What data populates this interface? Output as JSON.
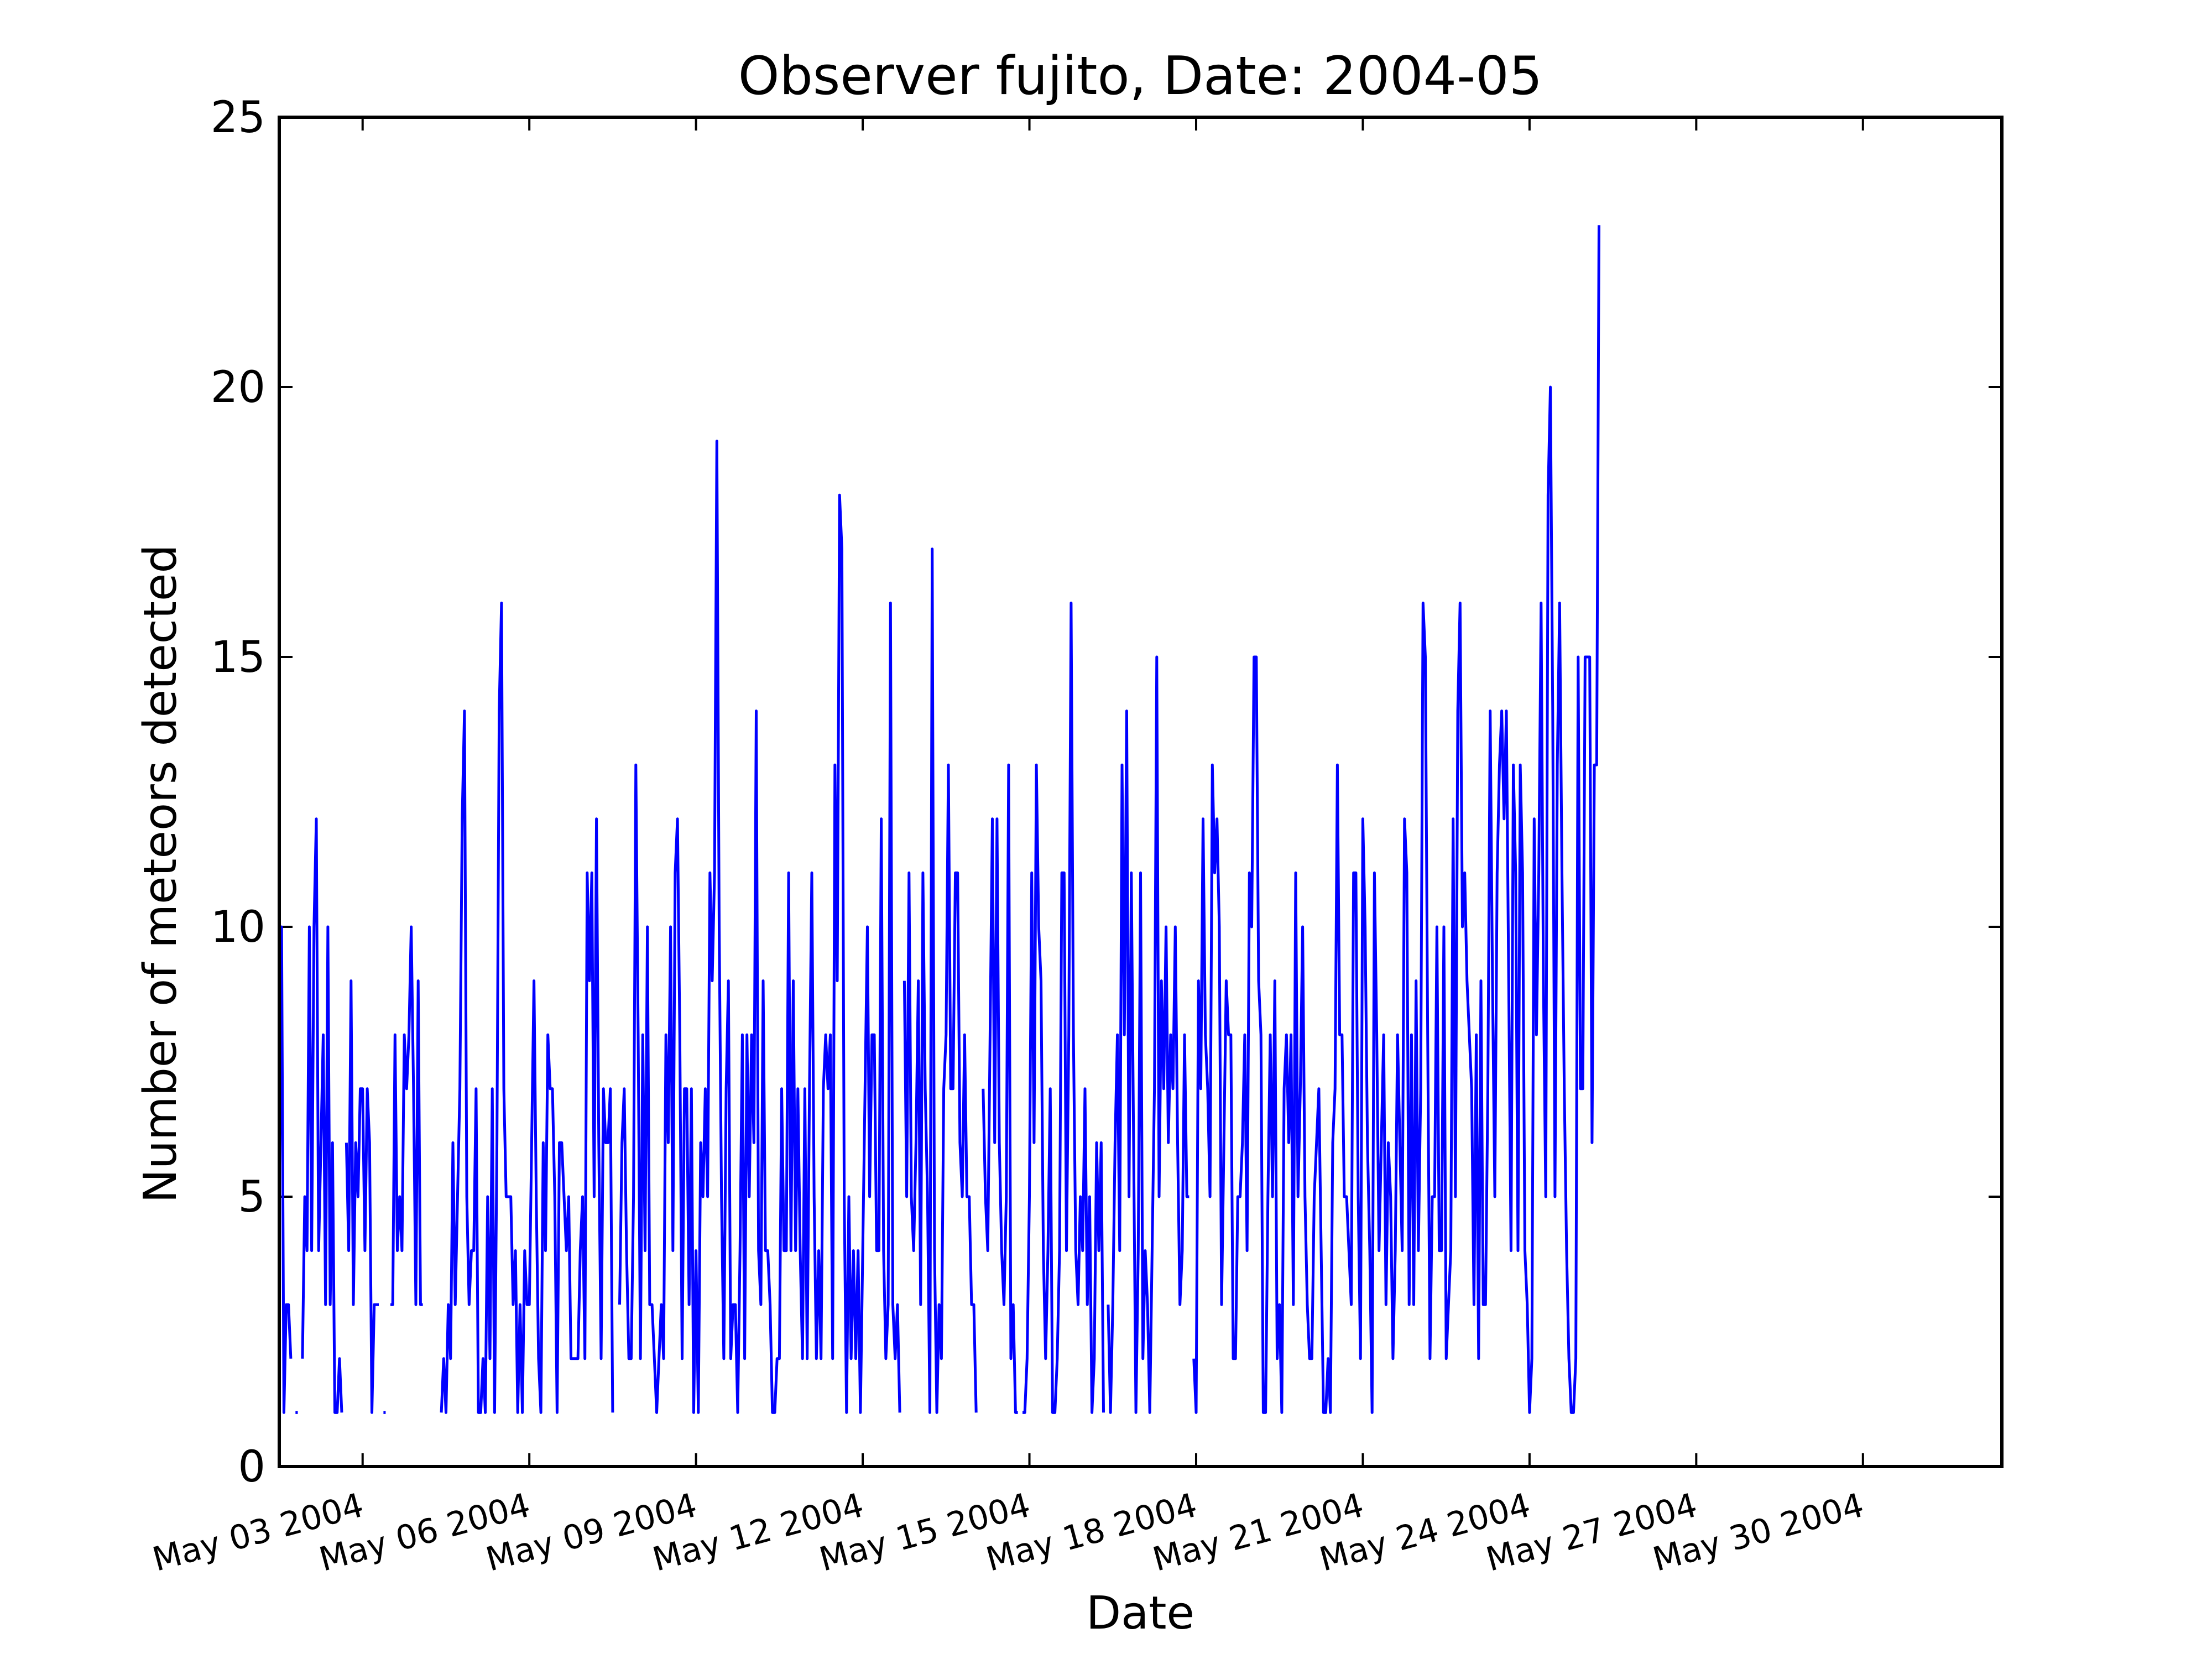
{
  "chart_data": {
    "type": "line",
    "title": "Observer fujito, Date: 2004-05",
    "xlabel": "Date",
    "ylabel": "Number of meteors detected",
    "xlim": [
      "2004-05-01 12:00",
      "2004-06-01 12:00"
    ],
    "ylim": [
      0,
      25
    ],
    "yticks": [
      0,
      5,
      10,
      15,
      20,
      25
    ],
    "xticks": [
      {
        "date": "2004-05-03",
        "label": "May 03 2004"
      },
      {
        "date": "2004-05-06",
        "label": "May 06 2004"
      },
      {
        "date": "2004-05-09",
        "label": "May 09 2004"
      },
      {
        "date": "2004-05-12",
        "label": "May 12 2004"
      },
      {
        "date": "2004-05-15",
        "label": "May 15 2004"
      },
      {
        "date": "2004-05-18",
        "label": "May 18 2004"
      },
      {
        "date": "2004-05-21",
        "label": "May 21 2004"
      },
      {
        "date": "2004-05-24",
        "label": "May 24 2004"
      },
      {
        "date": "2004-05-27",
        "label": "May 27 2004"
      },
      {
        "date": "2004-05-30",
        "label": "May 30 2004"
      }
    ],
    "grid": false,
    "line_color": "#0000ff",
    "series": [
      {
        "x_start": "2004-05-01 12:00",
        "x_step_hours": 1,
        "values": [
          5,
          10,
          1,
          3,
          3,
          2,
          null,
          1,
          1,
          null,
          2,
          5,
          4,
          10,
          4,
          10,
          12,
          4,
          6,
          8,
          3,
          10,
          3,
          6,
          1,
          1,
          2,
          1,
          null,
          6,
          4,
          9,
          3,
          6,
          5,
          7,
          7,
          4,
          7,
          6,
          1,
          3,
          3,
          3,
          null,
          1,
          null,
          null,
          3,
          3,
          8,
          4,
          5,
          4,
          8,
          7,
          8,
          10,
          7,
          3,
          9,
          3,
          3,
          null,
          null,
          null,
          null,
          null,
          null,
          null,
          1,
          2,
          1,
          3,
          2,
          6,
          3,
          5,
          7,
          12,
          14,
          5,
          3,
          4,
          4,
          7,
          1,
          1,
          2,
          1,
          5,
          2,
          7,
          1,
          6,
          14,
          16,
          7,
          5,
          5,
          5,
          3,
          4,
          1,
          3,
          1,
          4,
          3,
          3,
          6,
          9,
          5,
          2,
          1,
          6,
          4,
          8,
          7,
          7,
          5,
          1,
          6,
          6,
          5,
          4,
          5,
          2,
          2,
          2,
          2,
          4,
          5,
          2,
          11,
          9,
          11,
          5,
          12,
          6,
          2,
          7,
          6,
          6,
          7,
          1,
          null,
          null,
          3,
          6,
          7,
          4,
          2,
          2,
          5,
          13,
          8,
          2,
          8,
          4,
          10,
          3,
          3,
          2,
          1,
          2,
          3,
          2,
          8,
          6,
          10,
          4,
          11,
          12,
          8,
          2,
          7,
          7,
          3,
          7,
          1,
          4,
          1,
          6,
          5,
          7,
          5,
          11,
          9,
          11,
          19,
          10,
          5,
          2,
          7,
          9,
          2,
          3,
          3,
          1,
          4,
          8,
          2,
          8,
          5,
          8,
          6,
          14,
          4,
          3,
          9,
          4,
          4,
          3,
          1,
          1,
          2,
          2,
          7,
          4,
          4,
          11,
          4,
          9,
          4,
          7,
          4,
          2,
          7,
          2,
          7,
          11,
          5,
          2,
          4,
          2,
          7,
          8,
          7,
          8,
          2,
          13,
          9,
          18,
          17,
          5,
          1,
          5,
          2,
          4,
          2,
          4,
          1,
          4,
          7,
          10,
          5,
          8,
          8,
          4,
          4,
          12,
          4,
          2,
          3,
          16,
          3,
          2,
          3,
          1,
          null,
          9,
          5,
          11,
          5,
          4,
          6,
          9,
          3,
          11,
          7,
          5,
          1,
          17,
          4,
          1,
          3,
          2,
          7,
          8,
          13,
          7,
          7,
          11,
          11,
          6,
          5,
          8,
          5,
          5,
          3,
          3,
          1,
          null,
          null,
          7,
          5,
          4,
          8,
          12,
          6,
          12,
          6,
          4,
          3,
          5,
          13,
          2,
          3,
          1,
          1,
          null,
          1,
          1,
          2,
          5,
          11,
          6,
          13,
          10,
          9,
          4,
          2,
          4,
          7,
          1,
          1,
          2,
          4,
          11,
          11,
          4,
          8,
          16,
          8,
          4,
          3,
          5,
          4,
          7,
          3,
          5,
          1,
          2,
          6,
          4,
          6,
          1,
          null,
          3,
          1,
          3,
          6,
          8,
          4,
          13,
          8,
          14,
          5,
          11,
          6,
          1,
          4,
          11,
          2,
          4,
          3,
          1,
          4,
          7,
          15,
          5,
          9,
          7,
          10,
          6,
          8,
          7,
          10,
          6,
          3,
          4,
          8,
          5,
          5,
          null,
          2,
          1,
          9,
          7,
          12,
          8,
          7,
          5,
          13,
          11,
          12,
          10,
          3,
          6,
          9,
          8,
          8,
          2,
          2,
          5,
          5,
          6,
          8,
          4,
          11,
          10,
          15,
          15,
          9,
          8,
          1,
          1,
          5,
          8,
          5,
          9,
          2,
          3,
          1,
          7,
          8,
          6,
          8,
          3,
          11,
          5,
          7,
          10,
          5,
          3,
          2,
          2,
          5,
          6,
          7,
          4,
          1,
          1,
          2,
          1,
          6,
          7,
          13,
          8,
          8,
          5,
          5,
          4,
          3,
          11,
          11,
          5,
          2,
          12,
          10,
          6,
          4,
          1,
          11,
          8,
          4,
          6,
          8,
          3,
          6,
          5,
          2,
          4,
          8,
          6,
          4,
          12,
          11,
          3,
          8,
          3,
          9,
          4,
          7,
          16,
          15,
          8,
          2,
          5,
          5,
          10,
          4,
          4,
          10,
          2,
          3,
          4,
          12,
          5,
          14,
          16,
          10,
          11,
          9,
          8,
          7,
          3,
          8,
          2,
          9,
          3,
          3,
          7,
          14,
          9,
          5,
          11,
          13,
          14,
          12,
          14,
          9,
          4,
          13,
          11,
          4,
          13,
          11,
          4,
          3,
          1,
          2,
          12,
          8,
          11,
          16,
          9,
          5,
          18,
          20,
          14,
          5,
          13,
          16,
          11,
          7,
          4,
          2,
          1,
          1,
          2,
          15,
          7,
          7,
          15,
          15,
          15,
          6,
          13,
          13,
          23
        ]
      }
    ]
  }
}
